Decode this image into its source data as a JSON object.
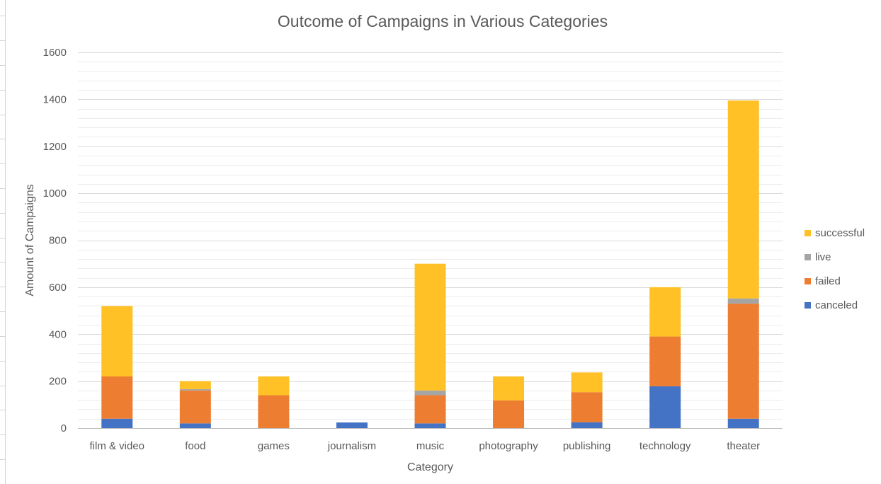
{
  "chart_data": {
    "type": "bar",
    "stacked": true,
    "title": "Outcome of Campaigns in Various Categories",
    "xlabel": "Category",
    "ylabel": "Amount of Campaigns",
    "ylim": [
      0,
      1600
    ],
    "ytick_step": 200,
    "grid": true,
    "legend_position": "right",
    "categories": [
      "film & video",
      "food",
      "games",
      "journalism",
      "music",
      "photography",
      "publishing",
      "technology",
      "theater"
    ],
    "series": [
      {
        "name": "canceled",
        "color": "#4472C4",
        "values": [
          40,
          20,
          0,
          24,
          20,
          0,
          25,
          178,
          40
        ]
      },
      {
        "name": "failed",
        "color": "#ED7D31",
        "values": [
          180,
          140,
          140,
          0,
          120,
          118,
          128,
          212,
          490
        ]
      },
      {
        "name": "live",
        "color": "#A5A5A5",
        "values": [
          0,
          6,
          0,
          0,
          20,
          0,
          0,
          0,
          22
        ]
      },
      {
        "name": "successful",
        "color": "#FFC125",
        "values": [
          300,
          34,
          80,
          0,
          540,
          102,
          84,
          210,
          843
        ]
      }
    ]
  }
}
